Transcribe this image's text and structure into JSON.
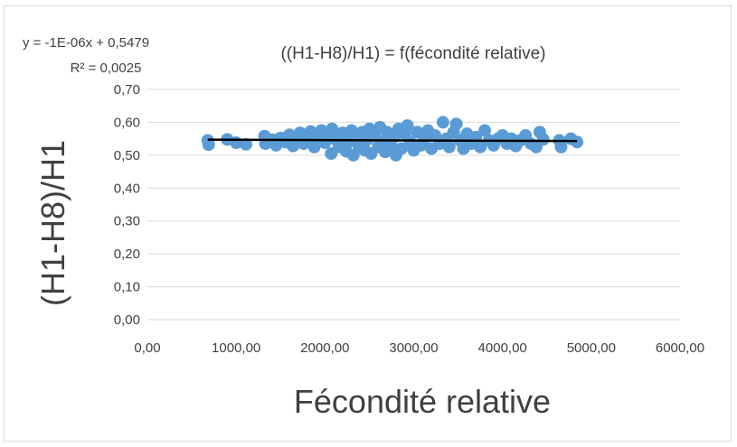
{
  "chart_data": {
    "type": "scatter",
    "title": "((H1-H8)/H1) = f(fécondité relative)",
    "xlabel": "Fécondité relative",
    "ylabel": "(H1-H8)/H1",
    "xlim": [
      0,
      6000
    ],
    "ylim": [
      0,
      0.7
    ],
    "x_ticks": [
      "0,00",
      "1000,00",
      "2000,00",
      "3000,00",
      "4000,00",
      "5000,00",
      "6000,00"
    ],
    "y_ticks": [
      "0,00",
      "0,10",
      "0,20",
      "0,30",
      "0,40",
      "0,50",
      "0,60",
      "0,70"
    ],
    "grid": true,
    "legend": "none",
    "series_color": "#5b9bd5",
    "trendline": {
      "equation": "y = -1E-06x + 0,5479",
      "r2": "R² = 0,0025",
      "slope": -1e-06,
      "intercept": 0.5479,
      "x_range": [
        680,
        4840
      ],
      "color": "#000000"
    },
    "points": [
      [
        680,
        0.545
      ],
      [
        690,
        0.532
      ],
      [
        900,
        0.548
      ],
      [
        1000,
        0.538
      ],
      [
        1110,
        0.533
      ],
      [
        1320,
        0.558
      ],
      [
        1330,
        0.535
      ],
      [
        1410,
        0.547
      ],
      [
        1450,
        0.53
      ],
      [
        1500,
        0.552
      ],
      [
        1560,
        0.54
      ],
      [
        1600,
        0.562
      ],
      [
        1640,
        0.528
      ],
      [
        1680,
        0.548
      ],
      [
        1720,
        0.568
      ],
      [
        1760,
        0.535
      ],
      [
        1800,
        0.555
      ],
      [
        1840,
        0.572
      ],
      [
        1880,
        0.525
      ],
      [
        1920,
        0.545
      ],
      [
        1960,
        0.575
      ],
      [
        2000,
        0.538
      ],
      [
        2040,
        0.56
      ],
      [
        2070,
        0.505
      ],
      [
        2080,
        0.58
      ],
      [
        2120,
        0.548
      ],
      [
        2160,
        0.525
      ],
      [
        2200,
        0.568
      ],
      [
        2240,
        0.512
      ],
      [
        2260,
        0.54
      ],
      [
        2300,
        0.575
      ],
      [
        2320,
        0.5
      ],
      [
        2350,
        0.555
      ],
      [
        2380,
        0.53
      ],
      [
        2420,
        0.57
      ],
      [
        2450,
        0.515
      ],
      [
        2480,
        0.548
      ],
      [
        2500,
        0.58
      ],
      [
        2520,
        0.505
      ],
      [
        2560,
        0.56
      ],
      [
        2600,
        0.525
      ],
      [
        2620,
        0.585
      ],
      [
        2650,
        0.54
      ],
      [
        2680,
        0.51
      ],
      [
        2700,
        0.57
      ],
      [
        2740,
        0.53
      ],
      [
        2780,
        0.555
      ],
      [
        2800,
        0.5
      ],
      [
        2830,
        0.58
      ],
      [
        2860,
        0.52
      ],
      [
        2900,
        0.565
      ],
      [
        2930,
        0.59
      ],
      [
        2960,
        0.54
      ],
      [
        3000,
        0.515
      ],
      [
        3040,
        0.57
      ],
      [
        3080,
        0.53
      ],
      [
        3120,
        0.55
      ],
      [
        3160,
        0.575
      ],
      [
        3200,
        0.52
      ],
      [
        3240,
        0.56
      ],
      [
        3290,
        0.535
      ],
      [
        3330,
        0.6
      ],
      [
        3370,
        0.55
      ],
      [
        3400,
        0.525
      ],
      [
        3450,
        0.57
      ],
      [
        3480,
        0.595
      ],
      [
        3520,
        0.545
      ],
      [
        3560,
        0.52
      ],
      [
        3600,
        0.565
      ],
      [
        3650,
        0.535
      ],
      [
        3700,
        0.555
      ],
      [
        3750,
        0.525
      ],
      [
        3800,
        0.575
      ],
      [
        3850,
        0.545
      ],
      [
        3900,
        0.53
      ],
      [
        3950,
        0.55
      ],
      [
        4000,
        0.56
      ],
      [
        4050,
        0.535
      ],
      [
        4100,
        0.55
      ],
      [
        4150,
        0.528
      ],
      [
        4200,
        0.545
      ],
      [
        4260,
        0.56
      ],
      [
        4320,
        0.535
      ],
      [
        4380,
        0.525
      ],
      [
        4420,
        0.57
      ],
      [
        4460,
        0.548
      ],
      [
        4640,
        0.545
      ],
      [
        4660,
        0.525
      ],
      [
        4770,
        0.55
      ],
      [
        4840,
        0.54
      ]
    ]
  }
}
